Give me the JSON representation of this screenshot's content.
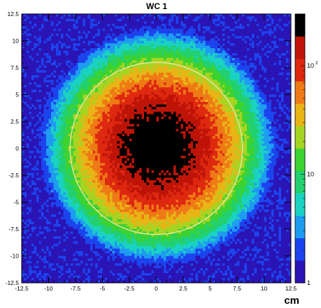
{
  "chart_data": {
    "type": "heatmap",
    "title": "WC 1",
    "xlabel": "cm",
    "ylabel": "",
    "xlim": [
      -12.5,
      12.5
    ],
    "ylim": [
      -12.5,
      12.5
    ],
    "x_ticks": [
      "-12.5",
      "-10",
      "-7.5",
      "-5",
      "-2.5",
      "0",
      "2.5",
      "5",
      "7.5",
      "10",
      "12.5"
    ],
    "y_ticks": [
      "12.5",
      "10",
      "7.5",
      "5",
      "2.5",
      "0",
      "-2.5",
      "-5",
      "-7.5",
      "-10",
      "-12.5"
    ],
    "z_scale": "log",
    "z_range": [
      1,
      300
    ],
    "z_ticks": [
      {
        "value": 1,
        "base": "1",
        "exp": ""
      },
      {
        "value": 10,
        "base": "10",
        "exp": ""
      },
      {
        "value": 100,
        "base": "10",
        "exp": "2"
      }
    ],
    "distribution": {
      "shape": "2D gaussian-like beam spot",
      "center": [
        0.2,
        0.2
      ],
      "peak_counts": 300,
      "saturated_core_radius_cm": 0.8,
      "background_counts": 1.3
    },
    "circle": {
      "center": [
        0,
        0
      ],
      "radius": 8.0,
      "color": "#e8e4a0"
    },
    "colorbar_colors": [
      "#2a14b5",
      "#1c44ee",
      "#1e9cf0",
      "#19d2c2",
      "#22d070",
      "#3cd230",
      "#a6d423",
      "#e8b416",
      "#ee7a16",
      "#de2810",
      "#be1408",
      "#000000"
    ],
    "grid": false
  }
}
